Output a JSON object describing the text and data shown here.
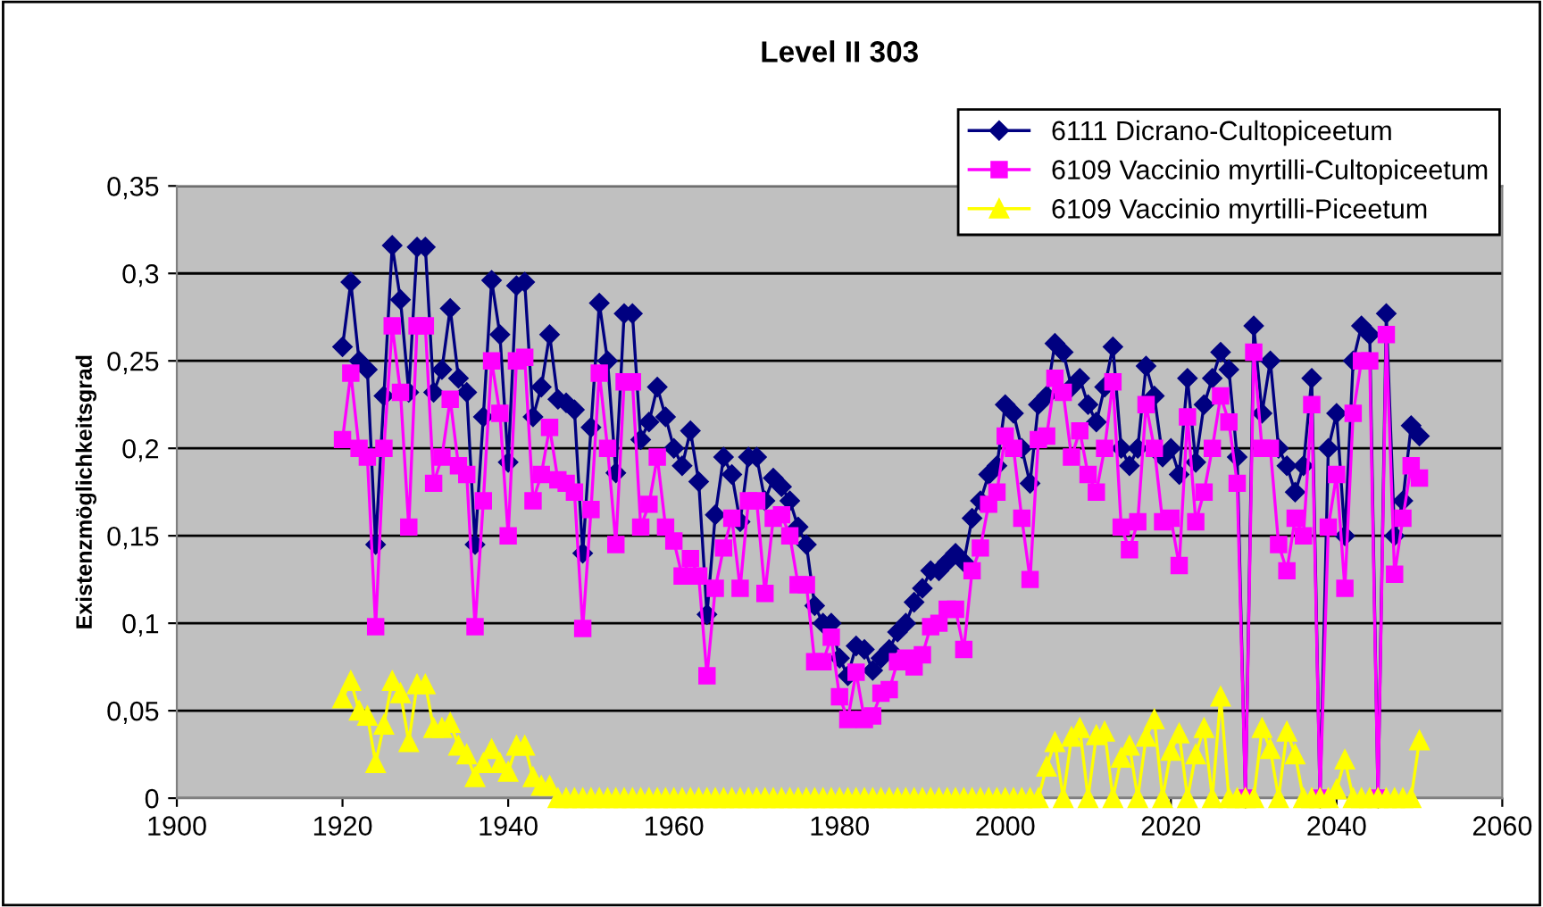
{
  "chart_data": {
    "type": "line",
    "title": "Level II 303",
    "ylabel": "Existenzmöglichkeitsgrad",
    "x": [
      1920,
      1921,
      1922,
      1923,
      1924,
      1925,
      1926,
      1927,
      1928,
      1929,
      1930,
      1931,
      1932,
      1933,
      1934,
      1935,
      1936,
      1937,
      1938,
      1939,
      1940,
      1941,
      1942,
      1943,
      1944,
      1945,
      1946,
      1947,
      1948,
      1949,
      1950,
      1951,
      1952,
      1953,
      1954,
      1955,
      1956,
      1957,
      1958,
      1959,
      1960,
      1961,
      1962,
      1963,
      1964,
      1965,
      1966,
      1967,
      1968,
      1969,
      1970,
      1971,
      1972,
      1973,
      1974,
      1975,
      1976,
      1977,
      1978,
      1979,
      1980,
      1981,
      1982,
      1983,
      1984,
      1985,
      1986,
      1987,
      1988,
      1989,
      1990,
      1991,
      1992,
      1993,
      1994,
      1995,
      1996,
      1997,
      1998,
      1999,
      2000,
      2001,
      2002,
      2003,
      2004,
      2005,
      2006,
      2007,
      2008,
      2009,
      2010,
      2011,
      2012,
      2013,
      2014,
      2015,
      2016,
      2017,
      2018,
      2019,
      2020,
      2021,
      2022,
      2023,
      2024,
      2025,
      2026,
      2027,
      2028,
      2029,
      2030,
      2031,
      2032,
      2033,
      2034,
      2035,
      2036,
      2037,
      2038,
      2039,
      2040,
      2041,
      2042,
      2043,
      2044,
      2045,
      2046,
      2047,
      2048,
      2049,
      2050
    ],
    "series": [
      {
        "name": "6111 Dicrano-Cultopiceetum",
        "color": "#000080",
        "marker": "diamond",
        "values": [
          0.258,
          0.295,
          0.25,
          0.245,
          0.145,
          0.23,
          0.316,
          0.285,
          0.232,
          0.315,
          0.315,
          0.232,
          0.245,
          0.28,
          0.24,
          0.232,
          0.145,
          0.218,
          0.296,
          0.265,
          0.192,
          0.293,
          0.295,
          0.218,
          0.235,
          0.265,
          0.228,
          0.226,
          0.222,
          0.14,
          0.212,
          0.283,
          0.25,
          0.186,
          0.277,
          0.277,
          0.205,
          0.215,
          0.235,
          0.218,
          0.2,
          0.19,
          0.21,
          0.181,
          0.105,
          0.162,
          0.195,
          0.185,
          0.158,
          0.195,
          0.195,
          0.17,
          0.183,
          0.178,
          0.17,
          0.155,
          0.145,
          0.11,
          0.1,
          0.1,
          0.08,
          0.07,
          0.087,
          0.085,
          0.073,
          0.08,
          0.085,
          0.095,
          0.1,
          0.112,
          0.12,
          0.13,
          0.13,
          0.135,
          0.14,
          0.135,
          0.16,
          0.17,
          0.185,
          0.19,
          0.225,
          0.22,
          0.2,
          0.18,
          0.225,
          0.23,
          0.26,
          0.255,
          0.235,
          0.24,
          0.225,
          0.215,
          0.235,
          0.258,
          0.2,
          0.19,
          0.2,
          0.247,
          0.23,
          0.195,
          0.2,
          0.185,
          0.24,
          0.192,
          0.225,
          0.24,
          0.255,
          0.245,
          0.195,
          0.0,
          0.27,
          0.22,
          0.25,
          0.2,
          0.19,
          0.175,
          0.19,
          0.24,
          0.0,
          0.2,
          0.22,
          0.15,
          0.25,
          0.27,
          0.265,
          0.0,
          0.277,
          0.15,
          0.17,
          0.213,
          0.207
        ]
      },
      {
        "name": "6109 Vaccinio myrtilli-Cultopiceetum",
        "color": "#ff00ff",
        "marker": "square",
        "values": [
          0.205,
          0.243,
          0.2,
          0.195,
          0.098,
          0.2,
          0.27,
          0.232,
          0.155,
          0.27,
          0.27,
          0.18,
          0.195,
          0.228,
          0.19,
          0.185,
          0.098,
          0.17,
          0.25,
          0.22,
          0.15,
          0.25,
          0.252,
          0.17,
          0.185,
          0.212,
          0.182,
          0.18,
          0.175,
          0.097,
          0.165,
          0.243,
          0.2,
          0.145,
          0.238,
          0.238,
          0.155,
          0.168,
          0.195,
          0.155,
          0.147,
          0.127,
          0.137,
          0.127,
          0.07,
          0.12,
          0.143,
          0.16,
          0.12,
          0.17,
          0.17,
          0.117,
          0.16,
          0.162,
          0.15,
          0.122,
          0.122,
          0.078,
          0.078,
          0.092,
          0.058,
          0.045,
          0.072,
          0.045,
          0.047,
          0.06,
          0.062,
          0.078,
          0.08,
          0.075,
          0.082,
          0.098,
          0.1,
          0.108,
          0.108,
          0.085,
          0.13,
          0.143,
          0.168,
          0.175,
          0.207,
          0.2,
          0.16,
          0.125,
          0.205,
          0.207,
          0.24,
          0.232,
          0.195,
          0.21,
          0.185,
          0.175,
          0.2,
          0.238,
          0.155,
          0.142,
          0.158,
          0.225,
          0.2,
          0.158,
          0.16,
          0.133,
          0.218,
          0.158,
          0.175,
          0.2,
          0.23,
          0.215,
          0.18,
          0.0,
          0.255,
          0.2,
          0.2,
          0.145,
          0.13,
          0.16,
          0.15,
          0.225,
          0.0,
          0.155,
          0.185,
          0.12,
          0.22,
          0.25,
          0.25,
          0.0,
          0.265,
          0.128,
          0.16,
          0.19,
          0.183
        ]
      },
      {
        "name": "6109 Vaccinio myrtilli-Piceetum",
        "color": "#ffff00",
        "marker": "triangle",
        "values": [
          0.057,
          0.067,
          0.05,
          0.047,
          0.02,
          0.042,
          0.067,
          0.06,
          0.032,
          0.065,
          0.065,
          0.04,
          0.04,
          0.043,
          0.03,
          0.025,
          0.012,
          0.02,
          0.028,
          0.02,
          0.015,
          0.03,
          0.03,
          0.012,
          0.007,
          0.007,
          0,
          0,
          0,
          0,
          0,
          0,
          0,
          0,
          0,
          0,
          0,
          0,
          0,
          0,
          0,
          0,
          0,
          0,
          0,
          0,
          0,
          0,
          0,
          0,
          0,
          0,
          0,
          0,
          0,
          0,
          0,
          0,
          0,
          0,
          0,
          0,
          0,
          0,
          0,
          0,
          0,
          0,
          0,
          0,
          0,
          0,
          0,
          0,
          0,
          0,
          0,
          0,
          0,
          0,
          0,
          0,
          0,
          0,
          0,
          0.018,
          0.032,
          0,
          0.035,
          0.04,
          0,
          0.036,
          0.038,
          0,
          0.023,
          0.03,
          0,
          0.035,
          0.045,
          0,
          0.027,
          0.037,
          0,
          0.025,
          0.04,
          0,
          0.058,
          0,
          0,
          0,
          0,
          0.04,
          0.028,
          0,
          0.038,
          0.025,
          0,
          0,
          0,
          0,
          0.005,
          0.022,
          0,
          0,
          0,
          0,
          0,
          0,
          0,
          0,
          0.033
        ]
      }
    ],
    "xlim": [
      1900,
      2060
    ],
    "xticks": [
      1900,
      1920,
      1940,
      1960,
      1980,
      2000,
      2020,
      2040,
      2060
    ],
    "ylim": [
      0,
      0.35
    ],
    "yticks": [
      {
        "value": 0,
        "label": "0"
      },
      {
        "value": 0.05,
        "label": "0,05"
      },
      {
        "value": 0.1,
        "label": "0,1"
      },
      {
        "value": 0.15,
        "label": "0,15"
      },
      {
        "value": 0.2,
        "label": "0,2"
      },
      {
        "value": 0.25,
        "label": "0,25"
      },
      {
        "value": 0.3,
        "label": "0,3"
      },
      {
        "value": 0.35,
        "label": "0,35"
      }
    ],
    "grid": "y",
    "legend": "top right",
    "line_style": "solid"
  }
}
